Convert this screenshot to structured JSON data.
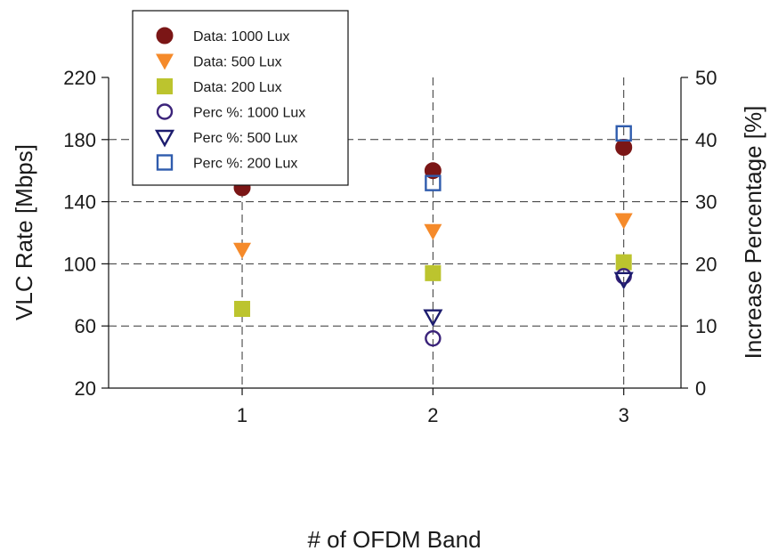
{
  "chart_data": {
    "type": "scatter",
    "title": "",
    "xlabel": "# of OFDM Band",
    "ylabel": "VLC Rate [Mbps]",
    "y2label": "Increase Percentage [%]",
    "x": [
      1,
      2,
      3
    ],
    "xlim": [
      0.3,
      3.3
    ],
    "xticks": [
      1,
      2,
      3
    ],
    "ylim": [
      20,
      220
    ],
    "yticks": [
      20,
      60,
      100,
      140,
      180,
      220
    ],
    "y2lim": [
      0,
      50
    ],
    "y2ticks": [
      0,
      10,
      20,
      30,
      40,
      50
    ],
    "grid": "dashed",
    "legend_position": "top-left",
    "series": [
      {
        "name": "Data: 1000 Lux",
        "axis": "left",
        "marker": "circle-filled",
        "color": "#7b1616",
        "x": [
          1,
          2,
          3
        ],
        "values": [
          149,
          160,
          175
        ]
      },
      {
        "name": "Data: 500 Lux",
        "axis": "left",
        "marker": "triangle-down-filled",
        "color": "#f58a2a",
        "x": [
          1,
          2,
          3
        ],
        "values": [
          109,
          121,
          128
        ]
      },
      {
        "name": "Data: 200 Lux",
        "axis": "left",
        "marker": "square-filled",
        "color": "#bcc42e",
        "x": [
          1,
          2,
          3
        ],
        "values": [
          71,
          94,
          101
        ]
      },
      {
        "name": "Perc %: 1000 Lux",
        "axis": "right",
        "marker": "circle-open",
        "color": "#3b237a",
        "x": [
          2,
          3
        ],
        "values": [
          8,
          18
        ]
      },
      {
        "name": "Perc %: 500 Lux",
        "axis": "right",
        "marker": "triangle-down-open",
        "color": "#1c1c6e",
        "x": [
          2,
          3
        ],
        "values": [
          11.5,
          17.5
        ]
      },
      {
        "name": "Perc %: 200 Lux",
        "axis": "right",
        "marker": "square-open",
        "color": "#2f5cad",
        "x": [
          2,
          3
        ],
        "values": [
          33,
          41
        ]
      }
    ]
  }
}
